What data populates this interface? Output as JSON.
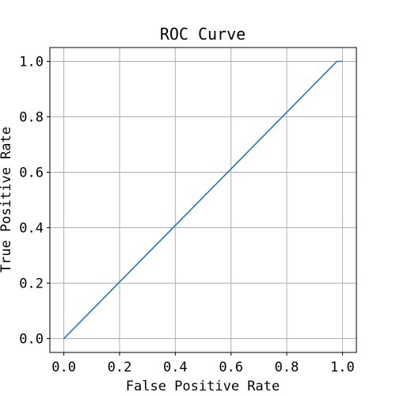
{
  "chart_data": {
    "type": "line",
    "title": "ROC Curve",
    "xlabel": "False Positive Rate",
    "ylabel": "True Positive Rate",
    "xlim": [
      -0.05,
      1.05
    ],
    "ylim": [
      -0.05,
      1.05
    ],
    "grid": true,
    "xticks": [
      {
        "value": 0.0,
        "label": "0.0"
      },
      {
        "value": 0.2,
        "label": "0.2"
      },
      {
        "value": 0.4,
        "label": "0.4"
      },
      {
        "value": 0.6,
        "label": "0.6"
      },
      {
        "value": 0.8,
        "label": "0.8"
      },
      {
        "value": 1.0,
        "label": "1.0"
      }
    ],
    "yticks": [
      {
        "value": 0.0,
        "label": "0.0"
      },
      {
        "value": 0.2,
        "label": "0.2"
      },
      {
        "value": 0.4,
        "label": "0.4"
      },
      {
        "value": 0.6,
        "label": "0.6"
      },
      {
        "value": 0.8,
        "label": "0.8"
      },
      {
        "value": 1.0,
        "label": "1.0"
      }
    ],
    "series": [
      {
        "color": "#1f77b4",
        "x": [
          0.0,
          0.98,
          1.0
        ],
        "y": [
          0.0,
          1.0,
          1.0
        ]
      }
    ]
  }
}
